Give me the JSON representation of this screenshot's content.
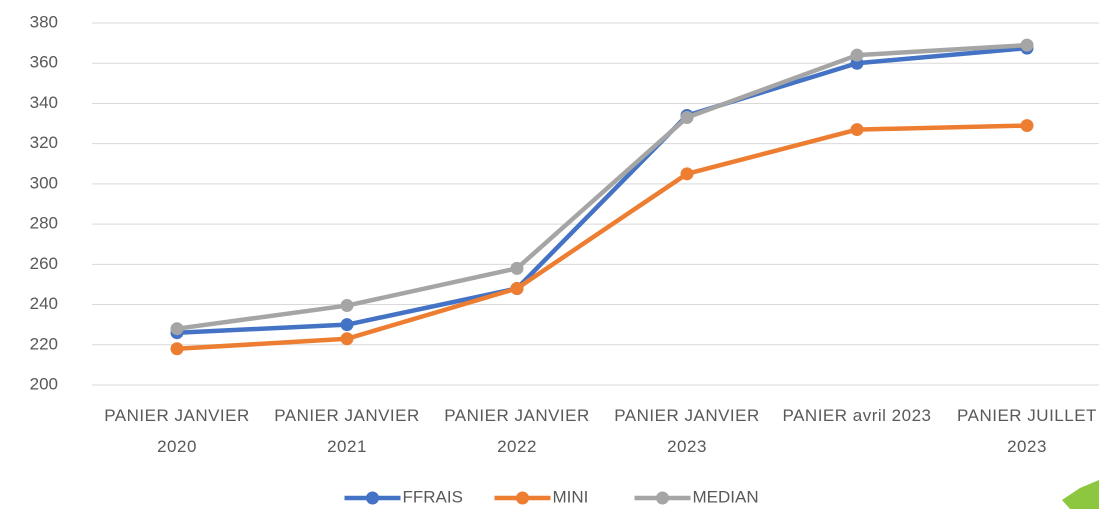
{
  "chart_data": {
    "type": "line",
    "categories": [
      "PANIER JANVIER 2020",
      "PANIER JANVIER 2021",
      "PANIER JANVIER 2022",
      "PANIER JANVIER 2023",
      "PANIER avril 2023",
      "PANIER JUILLET 2023"
    ],
    "series": [
      {
        "name": "FFRAIS",
        "color": "#4472c4",
        "values": [
          226,
          230,
          248,
          334,
          360,
          367.5
        ]
      },
      {
        "name": "MINI",
        "color": "#ed7d31",
        "values": [
          218,
          223,
          248,
          305,
          327,
          329
        ]
      },
      {
        "name": "MEDIAN",
        "color": "#a5a5a5",
        "values": [
          228,
          239.5,
          258,
          333,
          364,
          369
        ]
      }
    ],
    "ylim": [
      200,
      380
    ],
    "yticks": [
      200,
      220,
      240,
      260,
      280,
      300,
      320,
      340,
      360,
      380
    ],
    "grid": true,
    "legend": "bottom"
  }
}
